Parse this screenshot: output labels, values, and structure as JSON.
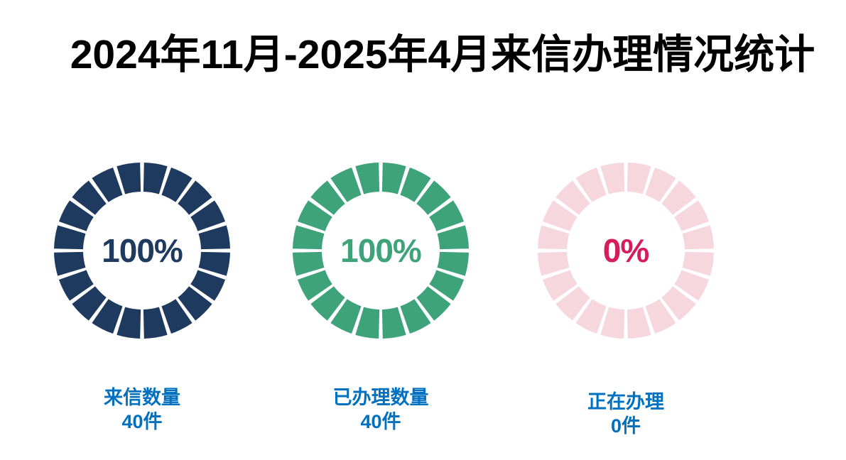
{
  "header": {
    "title": "2024年11月-2025年4月来信办理情况统计"
  },
  "colors": {
    "background": "#FFFFFF",
    "title_color": "#000000",
    "label_blue": "#0070C0"
  },
  "chart_data": {
    "type": "pie",
    "subtype": "segmented-donut-progress",
    "title": "2024年11月-2025年4月来信办理情况统计",
    "segments_per_ring": 20,
    "legend_position": "below-each-chart",
    "charts": [
      {
        "name": "来信数量",
        "percent": 100,
        "percent_label": "100%",
        "count": 40,
        "count_label": "40件",
        "ring_color": "#1F3A5F",
        "percent_text_color": "#1F3A5F"
      },
      {
        "name": "已办理数量",
        "percent": 100,
        "percent_label": "100%",
        "count": 40,
        "count_label": "40件",
        "ring_color": "#3EA27A",
        "percent_text_color": "#3EA27A"
      },
      {
        "name": "正在办理",
        "percent": 0,
        "percent_label": "0%",
        "count": 0,
        "count_label": "0件",
        "ring_color": "#F7D7DE",
        "percent_text_color": "#D61C5C"
      }
    ]
  }
}
